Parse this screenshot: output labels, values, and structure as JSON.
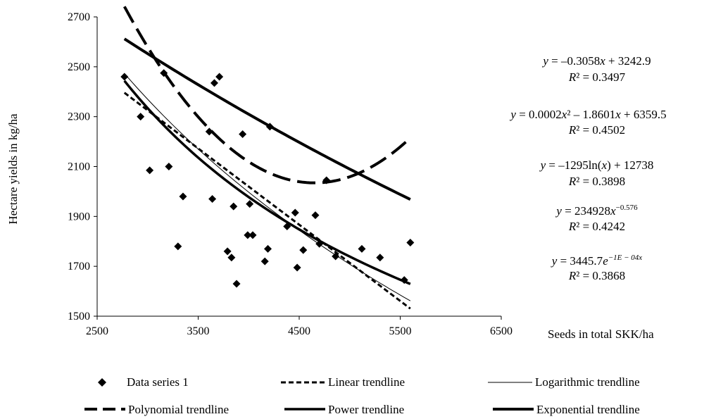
{
  "chart_data": {
    "type": "scatter",
    "xlabel": "Seeds in total SKK/ha",
    "ylabel": "Hectare yields in kg/ha",
    "xlim": [
      2500,
      6500
    ],
    "ylim": [
      1500,
      2700
    ],
    "xticks": [
      "2500",
      "3500",
      "4500",
      "5500",
      "6500"
    ],
    "yticks": [
      "1500",
      "1700",
      "1900",
      "2100",
      "2300",
      "2500",
      "2700"
    ],
    "grid": false,
    "legend_position": "bottom",
    "series": [
      {
        "name": "Data series 1",
        "kind": "points",
        "points": [
          [
            2770,
            2460
          ],
          [
            2930,
            2300
          ],
          [
            3020,
            2085
          ],
          [
            3160,
            2475
          ],
          [
            3210,
            2100
          ],
          [
            3300,
            1780
          ],
          [
            3350,
            1980
          ],
          [
            3610,
            2240
          ],
          [
            3640,
            1970
          ],
          [
            3660,
            2435
          ],
          [
            3710,
            2460
          ],
          [
            3790,
            1760
          ],
          [
            3830,
            1735
          ],
          [
            3850,
            1940
          ],
          [
            3880,
            1630
          ],
          [
            3940,
            2230
          ],
          [
            3990,
            1825
          ],
          [
            4010,
            1950
          ],
          [
            4040,
            1825
          ],
          [
            4160,
            1720
          ],
          [
            4190,
            1770
          ],
          [
            4210,
            2260
          ],
          [
            4380,
            1860
          ],
          [
            4460,
            1915
          ],
          [
            4480,
            1695
          ],
          [
            4540,
            1765
          ],
          [
            4660,
            1905
          ],
          [
            4700,
            1790
          ],
          [
            4770,
            2045
          ],
          [
            4860,
            1740
          ],
          [
            5120,
            1770
          ],
          [
            5300,
            1735
          ],
          [
            5540,
            1645
          ],
          [
            5600,
            1795
          ]
        ]
      },
      {
        "name": "Linear trendline",
        "kind": "linear",
        "coef": [
          -0.3058,
          3242.9
        ],
        "xrange": [
          2770,
          5600
        ]
      },
      {
        "name": "Logarithmic trendline",
        "kind": "log",
        "coef": [
          -1295,
          12738
        ],
        "xrange": [
          2770,
          5600
        ]
      },
      {
        "name": "Polynomial trendline",
        "kind": "poly2",
        "coef": [
          0.0002,
          -1.8601,
          6359.5
        ],
        "xrange": [
          2770,
          5600
        ]
      },
      {
        "name": "Power trendline",
        "kind": "power",
        "coef": [
          234928,
          -0.576
        ],
        "xrange": [
          2770,
          5600
        ]
      },
      {
        "name": "Exponential trendline",
        "kind": "exp",
        "coef": [
          3445.7,
          -0.0001
        ],
        "xrange": [
          2770,
          5600
        ]
      }
    ],
    "equations": [
      {
        "eq": "y = –0.3058x + 3242.9",
        "r2": "R² = 0.3497"
      },
      {
        "eq": "y = 0.0002x² – 1.8601x + 6359.5",
        "r2": "R² = 0.4502"
      },
      {
        "eq": "y = –1295ln(x) + 12738",
        "r2": "R² = 0.3898"
      },
      {
        "eq": "y = 234928x−0.576",
        "r2": "R² = 0.4242"
      },
      {
        "eq": "y = 3445.7e−1E − 04x",
        "r2": "R² = 0.3868"
      }
    ]
  }
}
